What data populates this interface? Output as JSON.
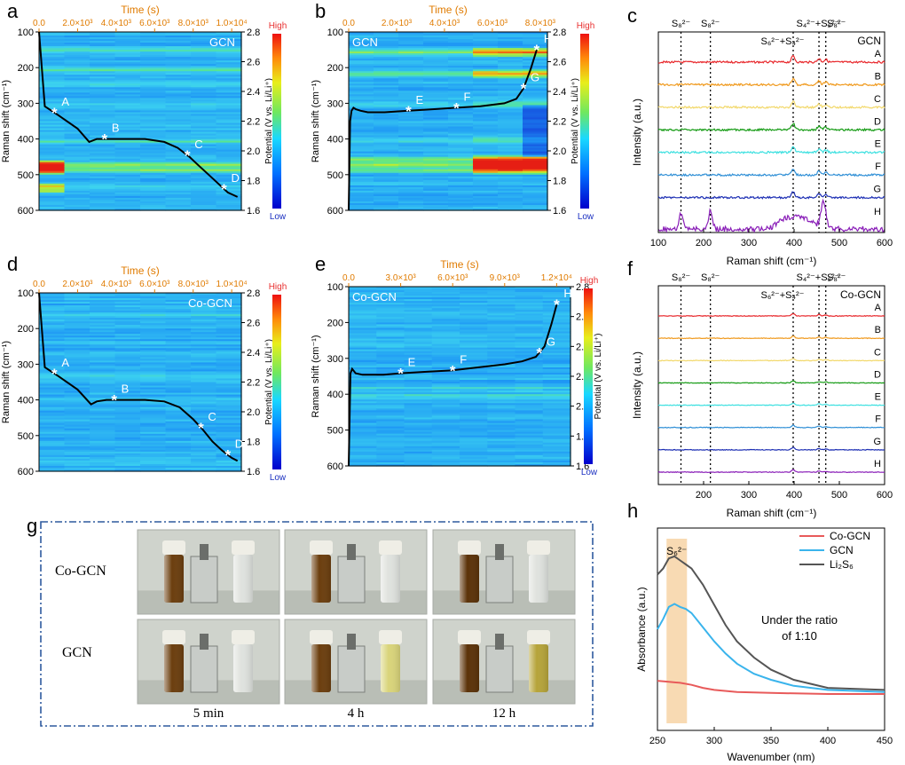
{
  "panel_labels": {
    "a": "a",
    "b": "b",
    "c": "c",
    "d": "d",
    "e": "e",
    "f": "f",
    "g": "g",
    "h": "h"
  },
  "colorbar": {
    "high": "High",
    "low": "Low",
    "label": "Potential (V vs. Li/Li⁺)",
    "ticks": [
      "2.8",
      "2.6",
      "2.4",
      "2.2",
      "2.0",
      "1.8",
      "1.6"
    ]
  },
  "colors": {
    "orange_axis": "#e07b00",
    "dark_blue": "#00007f",
    "red": "#e83030"
  },
  "chart_data": [
    {
      "id": "a",
      "type": "heatmap",
      "sample": "GCN",
      "xlabel": "Time (s)",
      "ylabel": "Raman shift (cm⁻¹)",
      "x_ticks": [
        "0.0",
        "2.0×10³",
        "4.0×10³",
        "6.0×10³",
        "8.0×10³",
        "1.0×10⁴"
      ],
      "y_ticks": [
        "100",
        "200",
        "300",
        "400",
        "500",
        "600"
      ],
      "xlim": [
        0,
        10500
      ],
      "ylim_raman": [
        100,
        600
      ],
      "ylim_potential": [
        1.6,
        2.8
      ],
      "potential_curve": {
        "x": [
          0,
          300,
          1000,
          2000,
          2600,
          3000,
          3500,
          4500,
          5500,
          6500,
          7200,
          7800,
          8300,
          8800,
          9300,
          9800,
          10300
        ],
        "y": [
          2.8,
          2.3,
          2.24,
          2.15,
          2.06,
          2.08,
          2.08,
          2.08,
          2.08,
          2.06,
          2.02,
          1.96,
          1.9,
          1.84,
          1.78,
          1.72,
          1.69
        ]
      },
      "points": [
        {
          "label": "A",
          "t": 800
        },
        {
          "label": "B",
          "t": 3400
        },
        {
          "label": "C",
          "t": 7700
        },
        {
          "label": "D",
          "t": 9600
        }
      ]
    },
    {
      "id": "b",
      "type": "heatmap",
      "sample": "GCN",
      "xlabel": "Time (s)",
      "ylabel": "Raman shift (cm⁻¹)",
      "x_ticks": [
        "0.0",
        "2.0×10³",
        "4.0×10³",
        "6.0×10³",
        "8.0×10³"
      ],
      "y_ticks": [
        "100",
        "200",
        "300",
        "400",
        "500",
        "600"
      ],
      "xlim": [
        0,
        8300
      ],
      "ylim_raman": [
        100,
        600
      ],
      "ylim_potential": [
        1.6,
        2.8
      ],
      "potential_curve": {
        "x": [
          0,
          60,
          120,
          200,
          300,
          500,
          800,
          1500,
          2500,
          3500,
          4500,
          5500,
          6500,
          7000,
          7300,
          7600,
          7850
        ],
        "y": [
          1.6,
          2.2,
          2.27,
          2.29,
          2.28,
          2.27,
          2.26,
          2.26,
          2.27,
          2.28,
          2.29,
          2.3,
          2.32,
          2.35,
          2.42,
          2.55,
          2.68
        ]
      },
      "points": [
        {
          "label": "E",
          "t": 2500
        },
        {
          "label": "F",
          "t": 4500
        },
        {
          "label": "G",
          "t": 7300
        },
        {
          "label": "H",
          "t": 7850
        }
      ]
    },
    {
      "id": "c",
      "type": "line",
      "sample": "GCN",
      "xlabel": "Raman shift (cm⁻¹)",
      "ylabel": "Intensity (a.u.)",
      "x_ticks": [
        "100",
        "200",
        "300",
        "400",
        "500",
        "600"
      ],
      "xlim": [
        100,
        600
      ],
      "peaks": [
        {
          "pos": 150,
          "label": "S₈²⁻"
        },
        {
          "pos": 215,
          "label": "S₈²⁻"
        },
        {
          "pos": 398,
          "label": "S₄²⁻+S₃²⁻"
        },
        {
          "pos": 455,
          "label": ""
        },
        {
          "pos": 470,
          "label": "S₈²⁻"
        }
      ],
      "annotation": "S₆²⁻+S₄²⁻",
      "series": [
        {
          "name": "A",
          "color": "#e8272b"
        },
        {
          "name": "B",
          "color": "#f09a1e"
        },
        {
          "name": "C",
          "color": "#f2d86a"
        },
        {
          "name": "D",
          "color": "#159b14"
        },
        {
          "name": "E",
          "color": "#3ce0e0"
        },
        {
          "name": "F",
          "color": "#2f8fd6"
        },
        {
          "name": "G",
          "color": "#1d2fb4"
        },
        {
          "name": "H",
          "color": "#8a1fb8"
        }
      ]
    },
    {
      "id": "d",
      "type": "heatmap",
      "sample": "Co-GCN",
      "xlabel": "Time (s)",
      "ylabel": "Raman shift (cm⁻¹)",
      "x_ticks": [
        "0.0",
        "2.0×10³",
        "4.0×10³",
        "6.0×10³",
        "8.0×10³",
        "1.0×10⁴"
      ],
      "y_ticks": [
        "100",
        "200",
        "300",
        "400",
        "500",
        "600"
      ],
      "xlim": [
        0,
        10500
      ],
      "ylim_raman": [
        100,
        600
      ],
      "ylim_potential": [
        1.6,
        2.8
      ],
      "potential_curve": {
        "x": [
          0,
          300,
          1000,
          2000,
          2700,
          3000,
          3500,
          4500,
          5500,
          6500,
          7300,
          8000,
          8500,
          9000,
          9500,
          10000,
          10300
        ],
        "y": [
          2.8,
          2.3,
          2.24,
          2.15,
          2.05,
          2.07,
          2.08,
          2.08,
          2.08,
          2.07,
          2.03,
          1.95,
          1.88,
          1.8,
          1.74,
          1.69,
          1.67
        ]
      },
      "points": [
        {
          "label": "A",
          "t": 800
        },
        {
          "label": "B",
          "t": 3900
        },
        {
          "label": "C",
          "t": 8400
        },
        {
          "label": "D",
          "t": 9800
        }
      ]
    },
    {
      "id": "e",
      "type": "heatmap",
      "sample": "Co-GCN",
      "xlabel": "Time (s)",
      "ylabel": "Raman shift (cm⁻¹)",
      "x_ticks": [
        "0.0",
        "3.0×10³",
        "6.0×10³",
        "9.0×10³",
        "1.2×10⁴"
      ],
      "y_ticks": [
        "100",
        "200",
        "300",
        "400",
        "500",
        "600"
      ],
      "xlim": [
        0,
        12800
      ],
      "ylim_raman": [
        100,
        600
      ],
      "ylim_potential": [
        1.6,
        2.8
      ],
      "potential_curve": {
        "x": [
          0,
          100,
          200,
          400,
          800,
          2000,
          3000,
          4500,
          6000,
          7500,
          9000,
          10000,
          10800,
          11300,
          11700,
          12000
        ],
        "y": [
          1.6,
          2.22,
          2.25,
          2.22,
          2.21,
          2.21,
          2.22,
          2.23,
          2.24,
          2.26,
          2.28,
          2.3,
          2.33,
          2.4,
          2.55,
          2.68
        ]
      },
      "points": [
        {
          "label": "E",
          "t": 3000
        },
        {
          "label": "F",
          "t": 6000
        },
        {
          "label": "G",
          "t": 11000
        },
        {
          "label": "H",
          "t": 12000
        }
      ]
    },
    {
      "id": "f",
      "type": "line",
      "sample": "Co-GCN",
      "xlabel": "Raman shift (cm⁻¹)",
      "ylabel": "Intensity (a.u.)",
      "x_ticks": [
        "200",
        "300",
        "400",
        "500",
        "600"
      ],
      "xlim": [
        100,
        600
      ],
      "peaks": [
        {
          "pos": 150,
          "label": "S₈²⁻"
        },
        {
          "pos": 215,
          "label": "S₈²⁻"
        },
        {
          "pos": 398,
          "label": "S₄²⁻+S₃²⁻"
        },
        {
          "pos": 455,
          "label": ""
        },
        {
          "pos": 470,
          "label": "S₈²⁻"
        }
      ],
      "annotation": "S₆²⁻+S₄²⁻",
      "series": [
        {
          "name": "A",
          "color": "#e8272b"
        },
        {
          "name": "B",
          "color": "#f09a1e"
        },
        {
          "name": "C",
          "color": "#f2d86a"
        },
        {
          "name": "D",
          "color": "#159b14"
        },
        {
          "name": "E",
          "color": "#3ce0e0"
        },
        {
          "name": "F",
          "color": "#2f8fd6"
        },
        {
          "name": "G",
          "color": "#1d2fb4"
        },
        {
          "name": "H",
          "color": "#8a1fb8"
        }
      ]
    },
    {
      "id": "h",
      "type": "line",
      "xlabel": "Wavenumber (nm)",
      "ylabel": "Absorbance (a.u.)",
      "x_ticks": [
        "250",
        "300",
        "350",
        "400",
        "450"
      ],
      "xlim": [
        250,
        450
      ],
      "ylim": [
        0,
        1
      ],
      "band": {
        "from": 258,
        "to": 276,
        "label": "S₆²⁻"
      },
      "annotation": "Under the ratio of 1:10",
      "series": [
        {
          "name": "Co-GCN",
          "color": "#e85a5a",
          "x": [
            250,
            260,
            270,
            280,
            290,
            300,
            320,
            350,
            400,
            450
          ],
          "y": [
            0.245,
            0.24,
            0.235,
            0.225,
            0.21,
            0.2,
            0.19,
            0.185,
            0.18,
            0.18
          ]
        },
        {
          "name": "GCN",
          "color": "#3ab4ec",
          "x": [
            250,
            255,
            260,
            265,
            270,
            275,
            280,
            290,
            300,
            310,
            320,
            335,
            350,
            370,
            400,
            450
          ],
          "y": [
            0.5,
            0.55,
            0.61,
            0.625,
            0.61,
            0.6,
            0.58,
            0.51,
            0.44,
            0.38,
            0.33,
            0.28,
            0.25,
            0.22,
            0.2,
            0.19
          ]
        },
        {
          "name": "Li₂S₆",
          "color": "#555555",
          "x": [
            250,
            255,
            260,
            265,
            270,
            275,
            280,
            290,
            300,
            310,
            320,
            335,
            350,
            370,
            400,
            450
          ],
          "y": [
            0.77,
            0.8,
            0.85,
            0.86,
            0.84,
            0.82,
            0.8,
            0.72,
            0.62,
            0.52,
            0.44,
            0.36,
            0.3,
            0.25,
            0.21,
            0.2
          ]
        }
      ]
    }
  ],
  "panel_g": {
    "rows": [
      "Co-GCN",
      "GCN"
    ],
    "times": [
      "5 min",
      "4 h",
      "12 h"
    ],
    "vial_colors": {
      "brown": "#6b3e0e",
      "yellow": "#b6a43a",
      "clear": "#dfe2de",
      "cap": "#efeee6"
    }
  }
}
